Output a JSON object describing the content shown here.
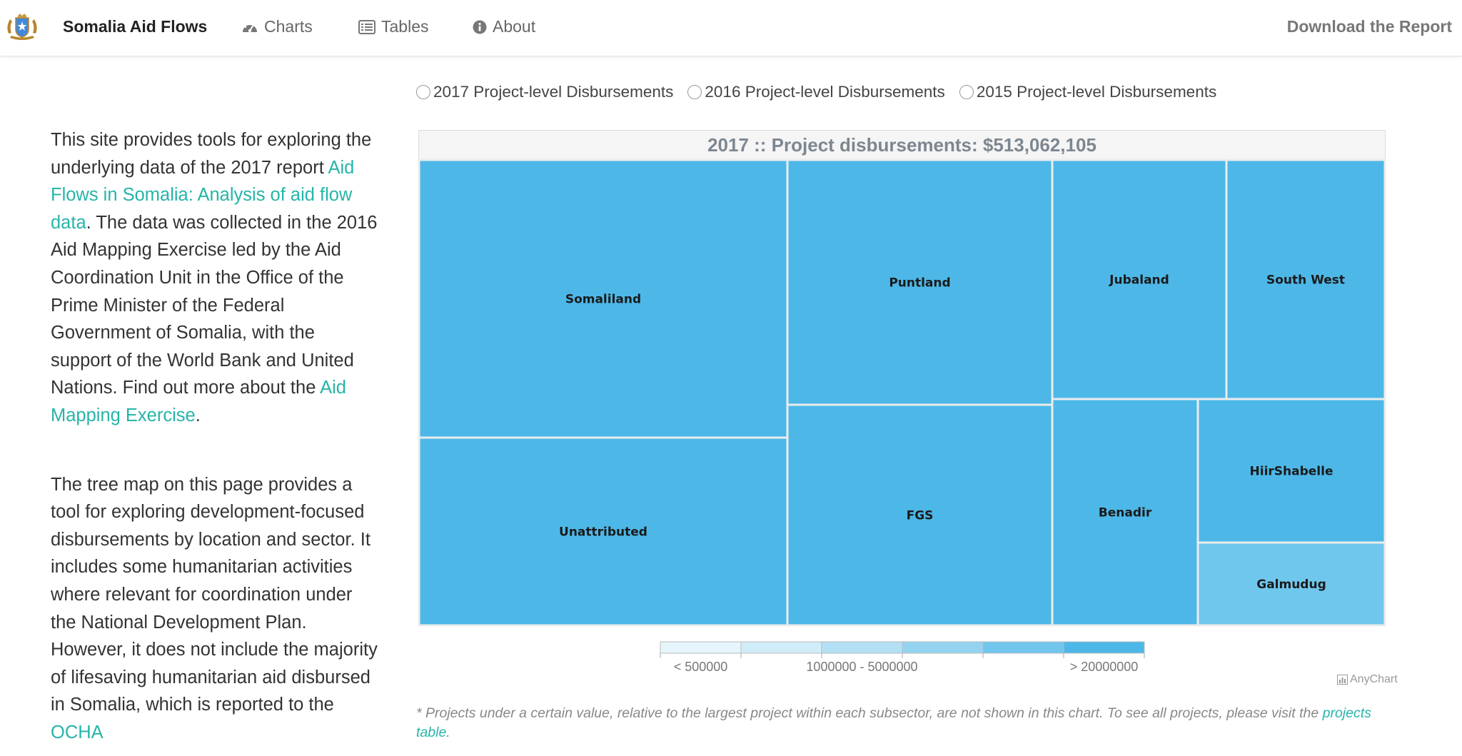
{
  "nav": {
    "brand": "Somalia Aid Flows",
    "charts": "Charts",
    "tables": "Tables",
    "about": "About",
    "download": "Download the Report"
  },
  "intro": {
    "p1_a": "This site provides tools for exploring the underlying data of the 2017 report ",
    "p1_link1": "Aid Flows in Somalia: Analysis of aid flow data",
    "p1_b": ". The data was collected in the 2016 Aid Mapping Exercise led by the Aid Coordination Unit in the Office of the Prime Minister of the Federal Government of Somalia, with the support of the World Bank and United Nations. Find out more about the ",
    "p1_link2": "Aid Mapping Exercise",
    "p1_c": ".",
    "p2_a": "The tree map on this page provides a tool for exploring development-focused disbursements by location and sector. It includes some humanitarian activities where relevant for coordination under the National Development Plan. However, it does not include the majority of lifesaving humanitarian aid disbursed in Somalia, which is reported to the ",
    "p2_link": "OCHA"
  },
  "radios": [
    {
      "label": "2017 Project-level Disbursements",
      "checked": false
    },
    {
      "label": "2016 Project-level Disbursements",
      "checked": false
    },
    {
      "label": "2015 Project-level Disbursements",
      "checked": false
    }
  ],
  "chart_data": {
    "type": "treemap",
    "title": "2017 :: Project disbursements: $513,062,105",
    "tiles": [
      {
        "label": "Somaliland",
        "color": "#4db8e8"
      },
      {
        "label": "Unattributed",
        "color": "#4db8e8"
      },
      {
        "label": "Puntland",
        "color": "#4db8e8"
      },
      {
        "label": "FGS",
        "color": "#4db8e8"
      },
      {
        "label": "Jubaland",
        "color": "#4db8e8"
      },
      {
        "label": "South West",
        "color": "#4db8e8"
      },
      {
        "label": "Benadir",
        "color": "#4db8e8"
      },
      {
        "label": "HiirShabelle",
        "color": "#4db8e8"
      },
      {
        "label": "Galmudug",
        "color": "#6fc7ed"
      }
    ],
    "legend": {
      "colors": [
        "#e6f5fc",
        "#d0ecf8",
        "#b3e0f4",
        "#94d3f0",
        "#70c6ec",
        "#4db8e8"
      ],
      "labels": [
        "< 500000",
        "1000000 - 5000000",
        "> 20000000"
      ]
    }
  },
  "credit": "AnyChart",
  "footnote": {
    "text": "* Projects under a certain value, relative to the largest project within each subsector, are not shown in this chart. To see all projects, please visit the ",
    "link": "projects table."
  }
}
